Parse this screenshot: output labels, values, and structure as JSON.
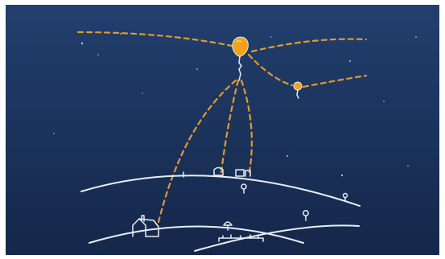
{
  "scene": {
    "description_free": true,
    "colors": {
      "sky_top": "#223f6e",
      "sky_bottom": "#15274a",
      "line": "#e8eef5",
      "balloon": "#f0a21c",
      "link": "#e39a2c",
      "star": "#b9c7dc",
      "page_background": "#ffffff"
    },
    "icons": {
      "main_balloon": "balloon-icon",
      "secondary_balloon": "balloon-icon",
      "house": "house-icon",
      "buildings": "building-icon",
      "trees": "tree-icon"
    }
  }
}
